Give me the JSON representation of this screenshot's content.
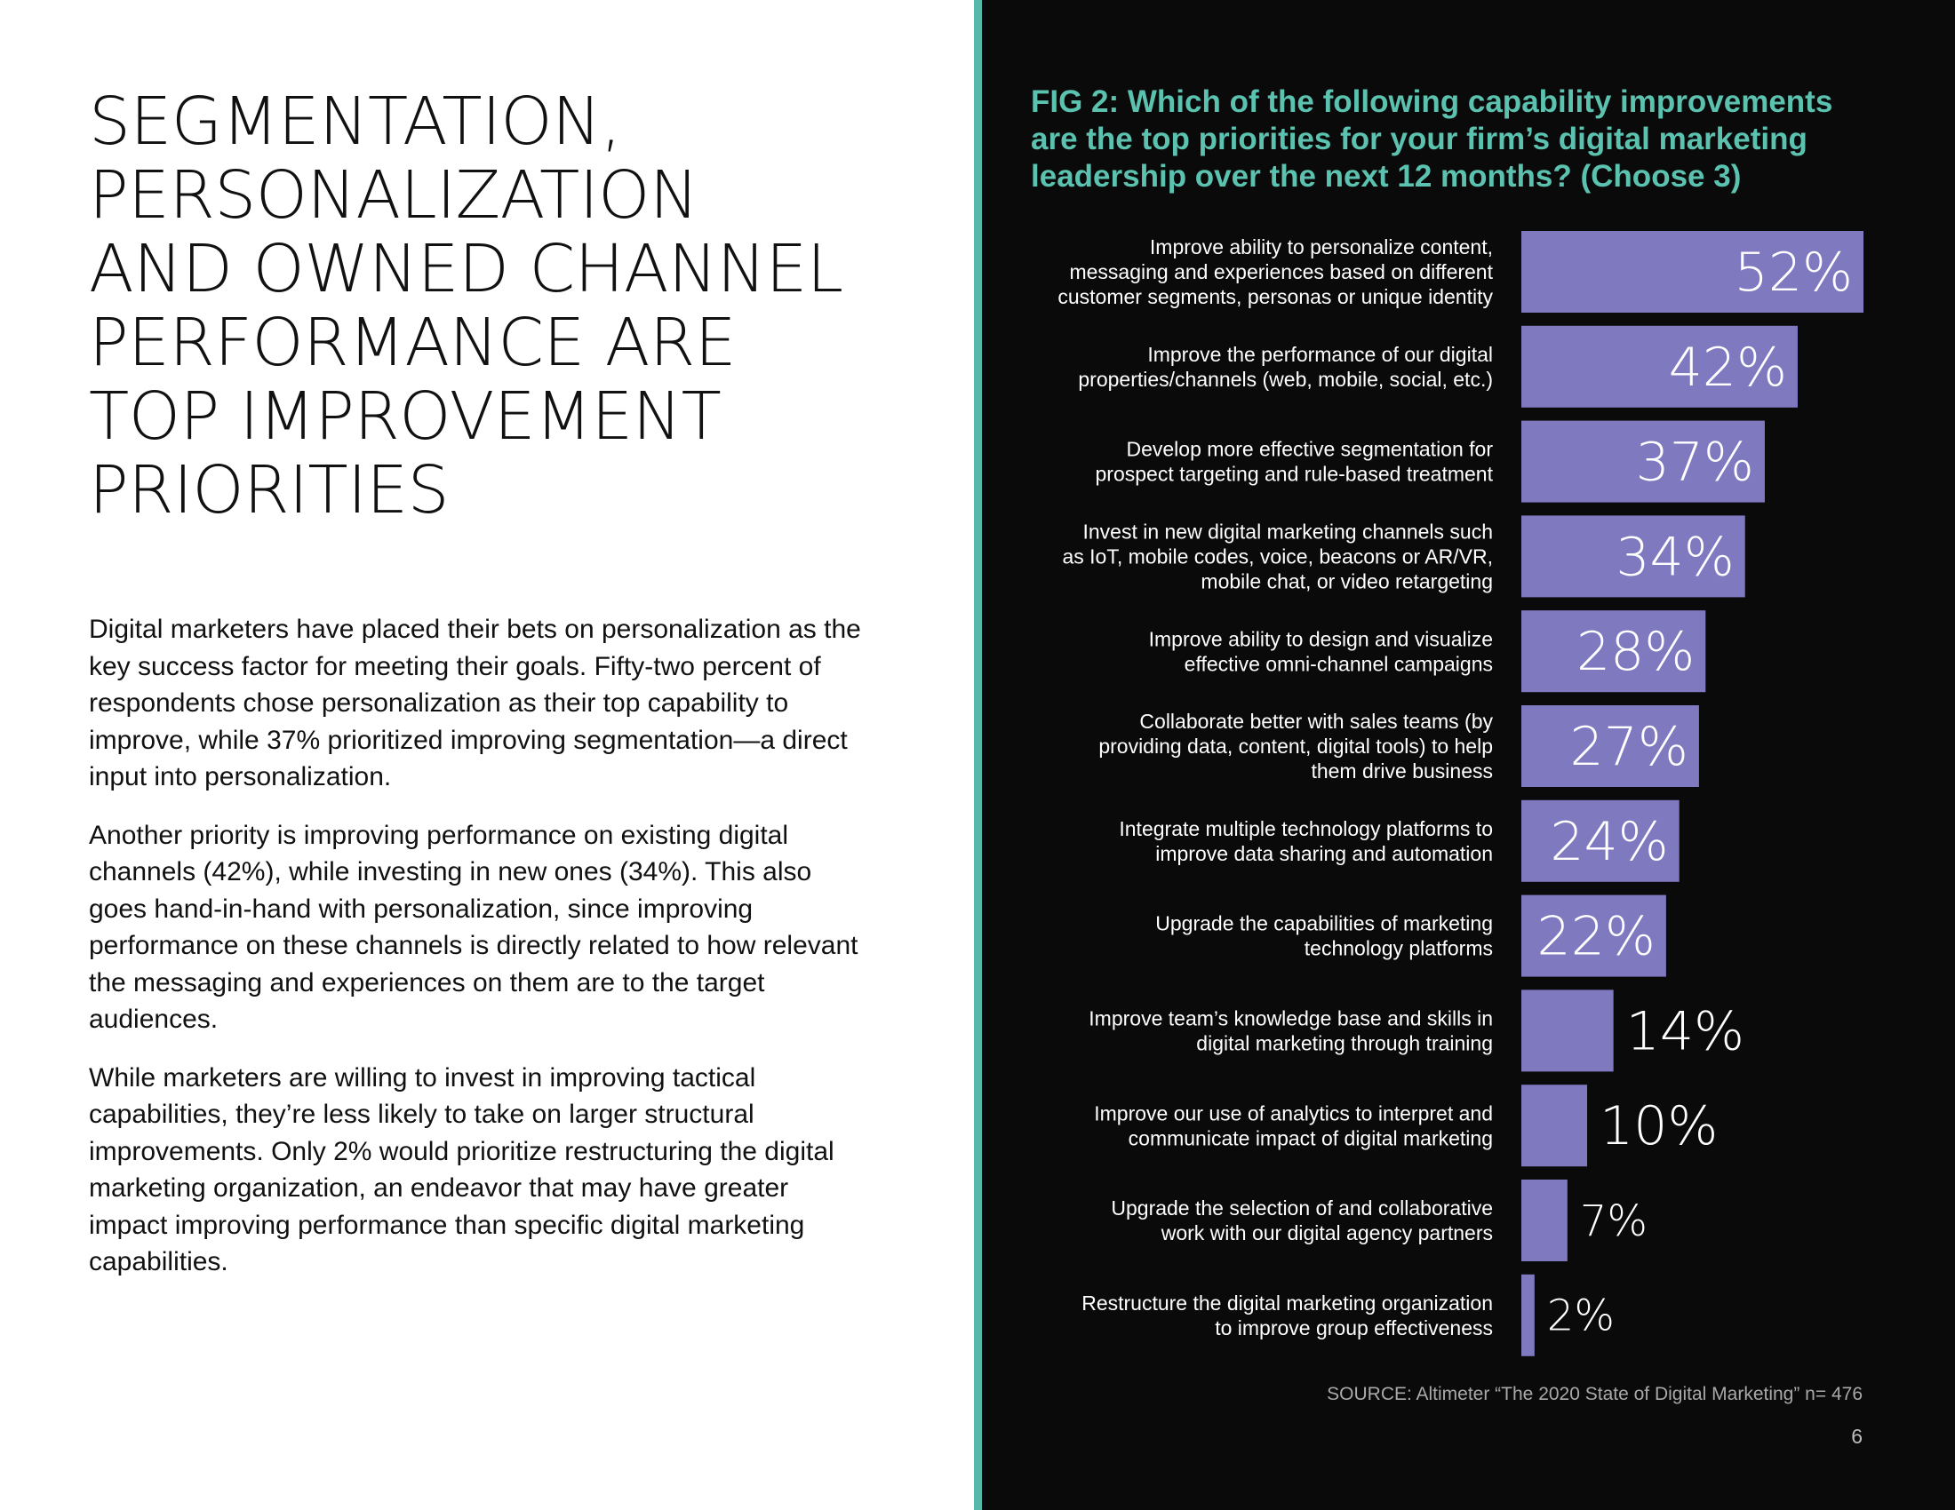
{
  "left": {
    "headline_lines": [
      "SEGMENTATION,",
      "PERSONALIZATION",
      "AND OWNED CHANNEL",
      "PERFORMANCE ARE",
      "TOP IMPROVEMENT",
      "PRIORITIES"
    ],
    "paragraphs": [
      "Digital marketers have placed their bets on personalization as the key success factor for meeting their goals. Fifty-two percent of respondents chose personalization as their top capability to improve, while 37% prioritized improving segmentation—a direct input into personalization.",
      "Another priority is improving performance on existing digital channels (42%), while investing in new ones (34%). This also goes hand-in-hand with personalization, since improving performance on these channels is directly related to how relevant the messaging and experiences on them are to the target audiences.",
      "While marketers are willing to invest in improving tactical capabilities, they’re less likely to take on larger structural improvements. Only 2% would prioritize restructuring the digital marketing organization, an endeavor that may have greater impact improving performance than specific digital marketing capabilities."
    ]
  },
  "figure": {
    "title_lines": [
      "FIG 2: Which of the following capability improvements",
      "are the top priorities for your firm’s digital marketing",
      "leadership over the next 12 months? (Choose 3)"
    ],
    "source": "SOURCE: Altimeter “The 2020 State of Digital Marketing” n= 476",
    "page_number": "6"
  },
  "colors": {
    "bar": "#7f79c0",
    "accent": "#5cc2b0",
    "panel_background": "#0a0a0a"
  },
  "chart_data": {
    "type": "bar",
    "orientation": "horizontal",
    "title": "FIG 2: Which of the following capability improvements are the top priorities for your firm’s digital marketing leadership over the next 12 months? (Choose 3)",
    "unit": "%",
    "categories": [
      [
        "Improve ability to personalize content,",
        "messaging and experiences based on different",
        "customer segments, personas or unique identity"
      ],
      [
        "Improve the performance of our digital",
        "properties/channels (web, mobile, social, etc.)"
      ],
      [
        "Develop more effective segmentation for",
        "prospect targeting and rule-based treatment"
      ],
      [
        "Invest in new digital marketing channels such",
        "as IoT, mobile codes, voice, beacons or AR/VR,",
        "mobile chat, or video retargeting"
      ],
      [
        "Improve ability to design and visualize",
        "effective omni-channel campaigns"
      ],
      [
        "Collaborate better with sales teams (by",
        "providing data, content, digital tools) to help",
        "them drive business"
      ],
      [
        "Integrate multiple technology platforms to",
        "improve data sharing and automation"
      ],
      [
        "Upgrade the capabilities of marketing",
        "technology platforms"
      ],
      [
        "Improve team’s knowledge base and skills in",
        "digital marketing through training"
      ],
      [
        "Improve our use of analytics to interpret and",
        "communicate impact of digital marketing"
      ],
      [
        "Upgrade the selection of and collaborative",
        "work with our digital agency partners"
      ],
      [
        "Restructure the digital marketing organization",
        "to improve group effectiveness"
      ]
    ],
    "values": [
      52,
      42,
      37,
      34,
      28,
      27,
      24,
      22,
      14,
      10,
      7,
      2
    ],
    "value_labels": [
      "52%",
      "42%",
      "37%",
      "34%",
      "28%",
      "27%",
      "24%",
      "22%",
      "14%",
      "10%",
      "7%",
      "2%"
    ],
    "xlim": [
      0,
      52
    ]
  }
}
